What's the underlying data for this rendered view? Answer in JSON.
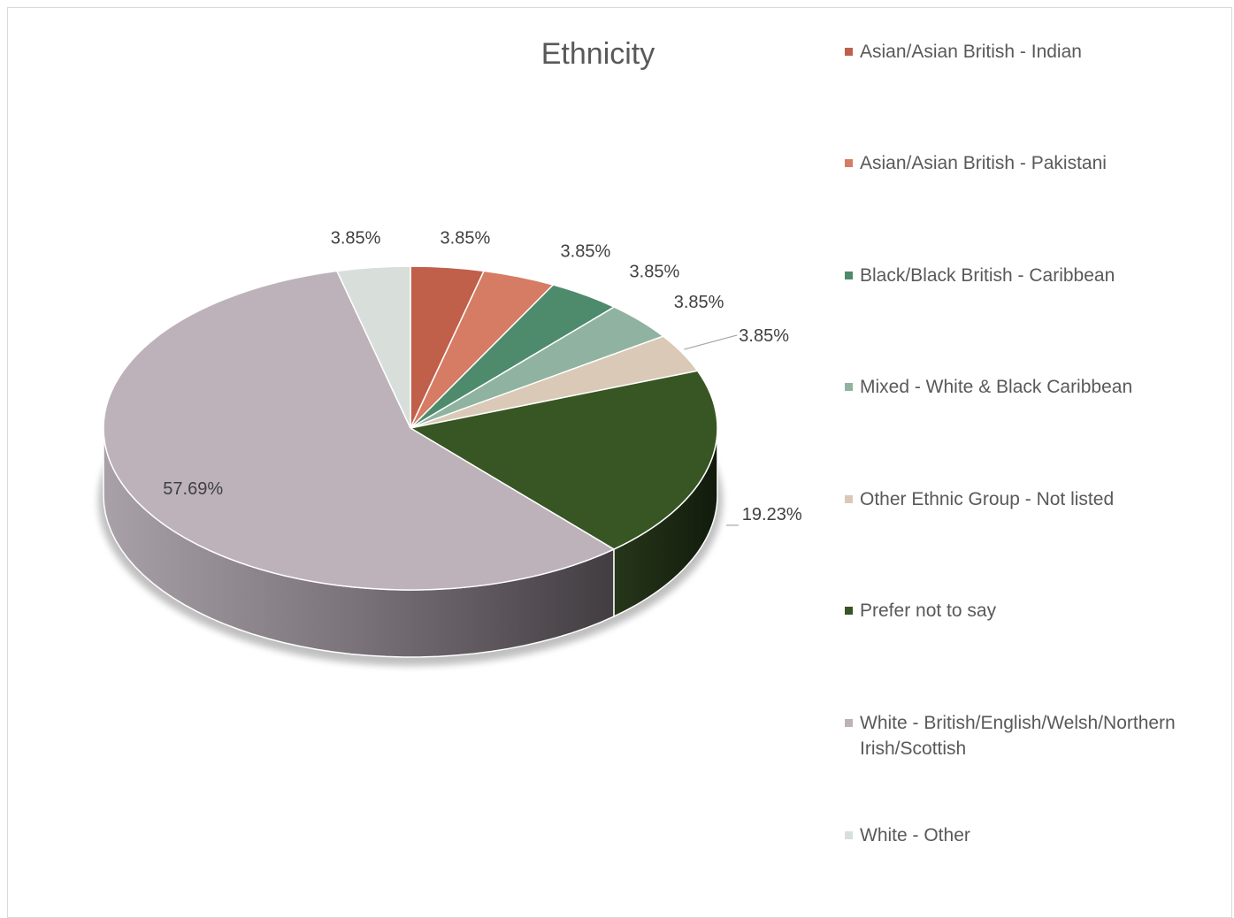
{
  "chart_data": {
    "type": "pie",
    "title": "Ethnicity",
    "categories": [
      "Asian/Asian British - Indian",
      "Asian/Asian British - Pakistani",
      "Black/Black British - Caribbean",
      "Mixed - White & Black Caribbean",
      "Other Ethnic Group - Not listed",
      "Prefer not to say",
      "White - British/English/Welsh/Northern Irish/Scottish",
      "White - Other"
    ],
    "values": [
      3.85,
      3.85,
      3.85,
      3.85,
      3.85,
      19.23,
      57.69,
      3.85
    ],
    "data_labels": [
      "3.85%",
      "3.85%",
      "3.85%",
      "3.85%",
      "3.85%",
      "19.23%",
      "57.69%",
      "3.85%"
    ],
    "colors": [
      "#c0604a",
      "#d67c64",
      "#4e8a6c",
      "#8fb3a0",
      "#d9c9b6",
      "#375623",
      "#bdb2ba",
      "#d8dfdb"
    ],
    "legend_position": "right",
    "style": "3d"
  }
}
